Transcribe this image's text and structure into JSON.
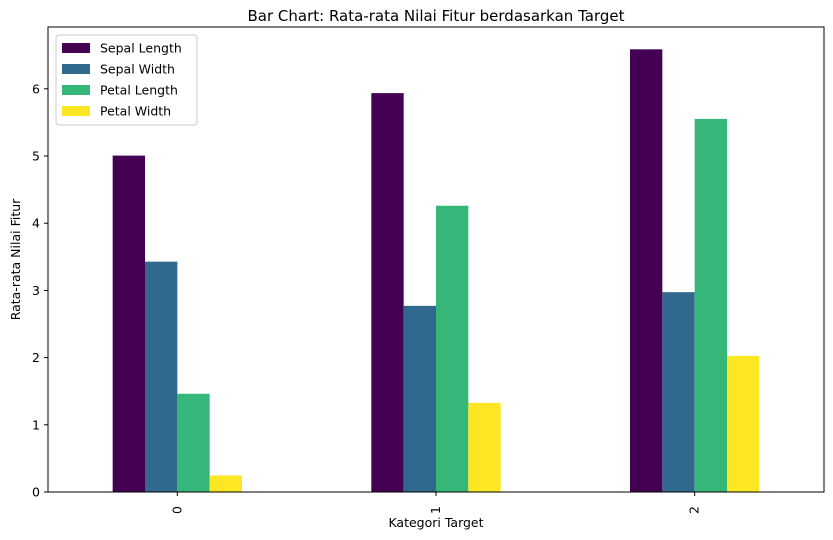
{
  "chart_data": {
    "type": "bar",
    "title": "Bar Chart: Rata-rata Nilai Fitur berdasarkan Target",
    "xlabel": "Kategori Target",
    "ylabel": "Rata-rata Nilai Fitur",
    "categories": [
      "0",
      "1",
      "2"
    ],
    "ylim": [
      0,
      6.92
    ],
    "yticks": [
      0,
      1,
      2,
      3,
      4,
      5,
      6
    ],
    "grid": false,
    "legend_position": "upper left",
    "series": [
      {
        "name": "Sepal Length",
        "color": "#440154",
        "values": [
          5.006,
          5.936,
          6.588
        ]
      },
      {
        "name": "Sepal Width",
        "color": "#31688e",
        "values": [
          3.428,
          2.77,
          2.974
        ]
      },
      {
        "name": "Petal Length",
        "color": "#35b779",
        "values": [
          1.462,
          4.26,
          5.552
        ]
      },
      {
        "name": "Petal Width",
        "color": "#fde725",
        "values": [
          0.246,
          1.326,
          2.026
        ]
      }
    ]
  }
}
